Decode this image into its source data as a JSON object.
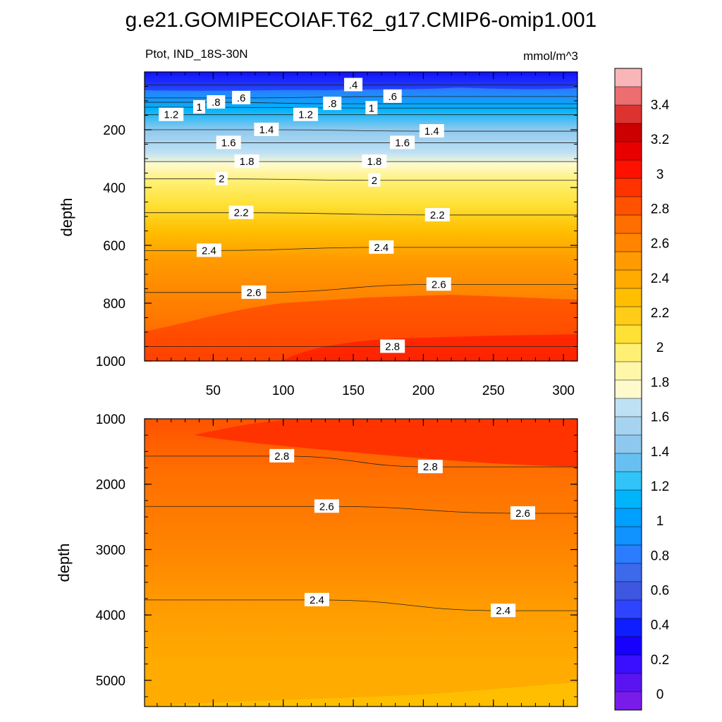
{
  "chart_data": {
    "type": "contour",
    "title": "g.e21.GOMIPECOIAF.T62_g17.CMIP6-omip1.001",
    "variable_label": "Ptot, IND_18S-30N",
    "units_label": "mmol/m^3",
    "panels": [
      {
        "name": "upper",
        "ylabel": "depth",
        "ylim": [
          0,
          1000
        ],
        "yticks": [
          200,
          400,
          600,
          800,
          1000
        ],
        "xlim": [
          1,
          310
        ],
        "xticks": [
          50,
          100,
          150,
          200,
          250,
          300
        ],
        "contour_labels": [
          {
            "x": 150,
            "y": 45,
            "text": ".4"
          },
          {
            "x": 52,
            "y": 105,
            "text": ".8"
          },
          {
            "x": 70,
            "y": 90,
            "text": ".6"
          },
          {
            "x": 40,
            "y": 122,
            "text": "1"
          },
          {
            "x": 20,
            "y": 148,
            "text": "1.2"
          },
          {
            "x": 135,
            "y": 110,
            "text": ".8"
          },
          {
            "x": 178,
            "y": 85,
            "text": ".6"
          },
          {
            "x": 163,
            "y": 125,
            "text": "1"
          },
          {
            "x": 116,
            "y": 148,
            "text": "1.2"
          },
          {
            "x": 88,
            "y": 200,
            "text": "1.4"
          },
          {
            "x": 206,
            "y": 205,
            "text": "1.4"
          },
          {
            "x": 61,
            "y": 245,
            "text": "1.6"
          },
          {
            "x": 185,
            "y": 245,
            "text": "1.6"
          },
          {
            "x": 74,
            "y": 310,
            "text": "1.8"
          },
          {
            "x": 165,
            "y": 310,
            "text": "1.8"
          },
          {
            "x": 56,
            "y": 370,
            "text": "2"
          },
          {
            "x": 165,
            "y": 375,
            "text": "2"
          },
          {
            "x": 70,
            "y": 487,
            "text": "2.2"
          },
          {
            "x": 210,
            "y": 495,
            "text": "2.2"
          },
          {
            "x": 47,
            "y": 618,
            "text": "2.4"
          },
          {
            "x": 170,
            "y": 607,
            "text": "2.4"
          },
          {
            "x": 79,
            "y": 763,
            "text": "2.6"
          },
          {
            "x": 211,
            "y": 735,
            "text": "2.6"
          },
          {
            "x": 178,
            "y": 950,
            "text": "2.8"
          }
        ]
      },
      {
        "name": "lower",
        "ylabel": "depth",
        "ylim": [
          1000,
          5400
        ],
        "yticks": [
          1000,
          2000,
          3000,
          4000,
          5000
        ],
        "xlim": [
          1,
          310
        ],
        "contour_labels": [
          {
            "x": 99,
            "y": 1570,
            "text": "2.8"
          },
          {
            "x": 205,
            "y": 1735,
            "text": "2.8"
          },
          {
            "x": 131,
            "y": 2340,
            "text": "2.6"
          },
          {
            "x": 271,
            "y": 2445,
            "text": "2.6"
          },
          {
            "x": 124,
            "y": 3770,
            "text": "2.4"
          },
          {
            "x": 257,
            "y": 3935,
            "text": "2.4"
          }
        ]
      }
    ],
    "colorbar": {
      "labels": [
        "3.4",
        "3.2",
        "3",
        "2.8",
        "2.6",
        "2.4",
        "2.2",
        "2",
        "1.8",
        "1.6",
        "1.4",
        "1.2",
        "1",
        "0.8",
        "0.6",
        "0.4",
        "0.2",
        "0"
      ],
      "colors_top_to_bottom": [
        "#f9b6b8",
        "#ec6e70",
        "#dc3330",
        "#cb0000",
        "#e80000",
        "#ff1100",
        "#ff3300",
        "#ff5200",
        "#ff6e00",
        "#ff8400",
        "#ff9b00",
        "#ffab00",
        "#ffbf00",
        "#ffcc18",
        "#ffe034",
        "#fff073",
        "#fff7a8",
        "#fffacc",
        "#bfe1f4",
        "#a6d4f0",
        "#8ec8ee",
        "#68c0f2",
        "#31c4f8",
        "#00b4fb",
        "#00a0fe",
        "#1092ff",
        "#2b7cff",
        "#3c6aeb",
        "#3d57e1",
        "#2f44ff",
        "#0f1eff",
        "#1800ff",
        "#3a0fff",
        "#5a14f2",
        "#7a1ce9"
      ]
    }
  }
}
